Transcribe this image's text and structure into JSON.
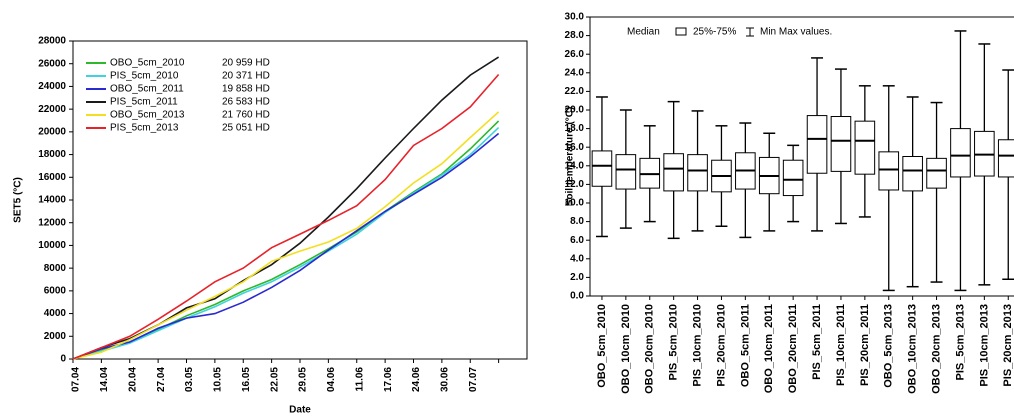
{
  "chart_data": [
    {
      "type": "line",
      "x_label": "Date",
      "y_label": "SET5 (°C)",
      "categories": [
        "07.04",
        "14.04",
        "20.04",
        "27.04",
        "03.05",
        "10.05",
        "16.05",
        "22.05",
        "29.05",
        "04.06",
        "11.06",
        "17.06",
        "24.06",
        "30.06",
        "07.07",
        null
      ],
      "ylim": [
        0,
        28000
      ],
      "yticks": [
        0,
        2000,
        4000,
        6000,
        8000,
        10000,
        12000,
        14000,
        16000,
        18000,
        20000,
        22000,
        24000,
        26000,
        28000
      ],
      "series": [
        {
          "name": "OBO_5cm_2010",
          "color": "#2db82d",
          "total": 20959,
          "total_label": "20 959 HD",
          "values": [
            0,
            800,
            1500,
            2600,
            3800,
            4800,
            6000,
            7000,
            8300,
            9700,
            11200,
            13000,
            14700,
            16300,
            18500,
            20959
          ]
        },
        {
          "name": "PIS_5cm_2010",
          "color": "#3fd3e0",
          "total": 20371,
          "total_label": "20 371 HD",
          "values": [
            0,
            700,
            1400,
            2500,
            3600,
            4600,
            5800,
            6800,
            8100,
            9500,
            11000,
            12900,
            14600,
            16200,
            18000,
            20371
          ]
        },
        {
          "name": "OBO_5cm_2011",
          "color": "#2a2ad0",
          "total": 19858,
          "total_label": "19 858 HD",
          "values": [
            0,
            900,
            1500,
            2700,
            3600,
            4000,
            5000,
            6300,
            7800,
            9600,
            11300,
            13000,
            14500,
            16000,
            17800,
            19858
          ]
        },
        {
          "name": "PIS_5cm_2011",
          "color": "#1a1a1a",
          "total": 26583,
          "total_label": "26 583 HD",
          "values": [
            0,
            1000,
            1800,
            3000,
            4500,
            5300,
            6900,
            8300,
            10200,
            12500,
            15000,
            17700,
            20300,
            22800,
            25000,
            26583
          ]
        },
        {
          "name": "OBO_5cm_2013",
          "color": "#f2e020",
          "total": 21760,
          "total_label": "21 760 HD",
          "values": [
            0,
            600,
            1700,
            3000,
            4300,
            5500,
            6800,
            8600,
            9500,
            10300,
            11500,
            13400,
            15500,
            17200,
            19500,
            21760
          ]
        },
        {
          "name": "PIS_5cm_2013",
          "color": "#e8222a",
          "total": 25051,
          "total_label": "25 051 HD",
          "values": [
            0,
            1000,
            2000,
            3500,
            5100,
            6800,
            8000,
            9800,
            11000,
            12200,
            13500,
            15800,
            18800,
            20300,
            22200,
            25051
          ]
        }
      ]
    },
    {
      "type": "box",
      "y_label": "Soil temperature (°C)",
      "legend": {
        "median": "Median",
        "box": "25%-75%",
        "whisker": "Min Max values."
      },
      "categories": [
        "OBO_5cm_2010",
        "OBO_10cm_2010",
        "OBO_20cm_2010",
        "PIS_5cm_2010",
        "PIS_10cm_2010",
        "PIS_20cm_2010",
        "OBO_5cm_2011",
        "OBO_10cm_2011",
        "OBO_20cm_2011",
        "PIS_5cm_2011",
        "PIS_10cm_2011",
        "PIS_20cm_2011",
        "OBO_5cm_2013",
        "OBO_10cm_2013",
        "OBO_20cm_2013",
        "PIS_5cm_2013",
        "PIS_10cm_2013",
        "PIS_20cm_2013"
      ],
      "ylim": [
        0,
        30
      ],
      "yticks": [
        {
          "value": 0,
          "label": "0.0"
        },
        {
          "value": 2,
          "label": "2.0"
        },
        {
          "value": 4,
          "label": "4.0"
        },
        {
          "value": 6,
          "label": "6.0"
        },
        {
          "value": 8,
          "label": "8.0"
        },
        {
          "value": 10,
          "label": "10.0"
        },
        {
          "value": 12,
          "label": "12.0"
        },
        {
          "value": 14,
          "label": "14.0"
        },
        {
          "value": 16,
          "label": "16.0"
        },
        {
          "value": 18,
          "label": "18.0"
        },
        {
          "value": 20,
          "label": "20.0"
        },
        {
          "value": 22,
          "label": "22.0"
        },
        {
          "value": 24,
          "label": "24.0"
        },
        {
          "value": 26,
          "label": "26.0"
        },
        {
          "value": 28,
          "label": "28.0"
        },
        {
          "value": 30,
          "label": "30.0"
        }
      ],
      "min": [
        6.4,
        7.3,
        8.0,
        6.2,
        7.0,
        7.5,
        6.3,
        7.0,
        8.0,
        7.0,
        7.8,
        8.5,
        0.6,
        1.0,
        1.5,
        0.6,
        1.2,
        1.8
      ],
      "q1": [
        11.8,
        11.5,
        11.6,
        11.3,
        11.3,
        11.2,
        11.5,
        11.0,
        10.8,
        13.2,
        13.4,
        13.1,
        11.4,
        11.3,
        11.6,
        12.8,
        12.9,
        12.8
      ],
      "median": [
        14.0,
        13.6,
        13.1,
        13.7,
        13.5,
        12.9,
        13.5,
        12.9,
        12.5,
        16.9,
        16.7,
        16.7,
        13.6,
        13.5,
        13.5,
        15.1,
        15.2,
        15.1
      ],
      "q3": [
        15.6,
        15.2,
        14.8,
        15.3,
        15.2,
        14.6,
        15.4,
        14.9,
        14.6,
        19.4,
        19.3,
        18.8,
        15.5,
        15.0,
        14.8,
        18.0,
        17.7,
        16.8
      ],
      "max": [
        21.4,
        20.0,
        18.3,
        20.9,
        19.9,
        18.3,
        18.6,
        17.5,
        16.2,
        25.6,
        24.4,
        22.6,
        22.6,
        21.4,
        20.8,
        28.5,
        27.1,
        24.3
      ]
    }
  ]
}
